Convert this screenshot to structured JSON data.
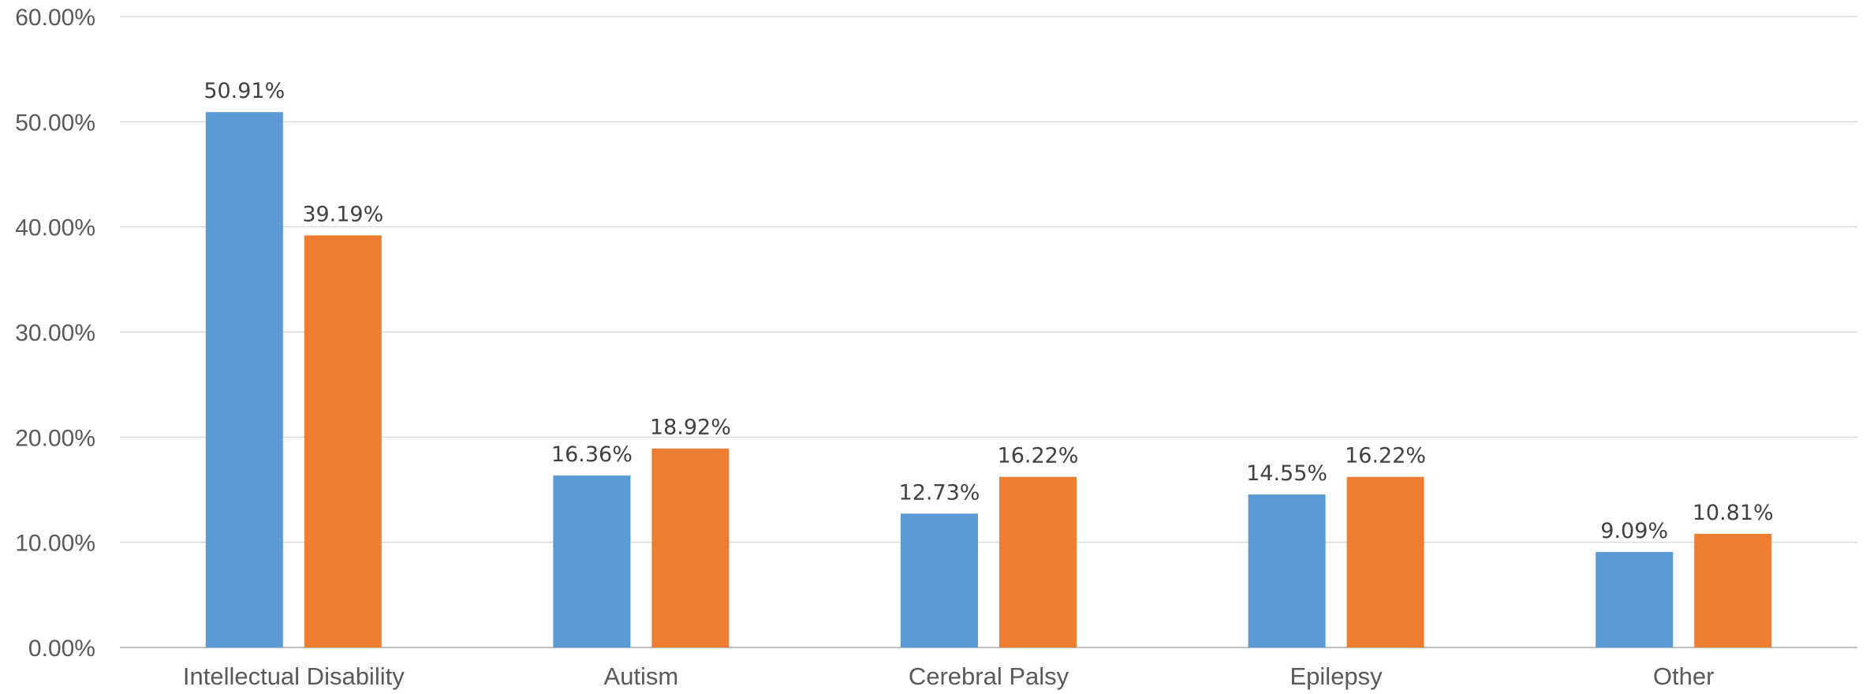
{
  "chart_data": {
    "type": "bar",
    "categories": [
      "Intellectual Disability",
      "Autism",
      "Cerebral Palsy",
      "Epilepsy",
      "Other"
    ],
    "series": [
      {
        "color": "#5b9bd5",
        "values": [
          50.91,
          16.36,
          12.73,
          14.55,
          9.09
        ],
        "labels": [
          "50.91%",
          "16.36%",
          "12.73%",
          "14.55%",
          "9.09%"
        ]
      },
      {
        "color": "#ed7d31",
        "values": [
          39.19,
          18.92,
          16.22,
          16.22,
          10.81
        ],
        "labels": [
          "39.19%",
          "18.92%",
          "16.22%",
          "16.22%",
          "10.81%"
        ]
      }
    ],
    "yticks": [
      "0.00%",
      "10.00%",
      "20.00%",
      "30.00%",
      "40.00%",
      "50.00%",
      "60.00%"
    ],
    "ylim": [
      0,
      60
    ],
    "grid": true,
    "legend": "none"
  }
}
